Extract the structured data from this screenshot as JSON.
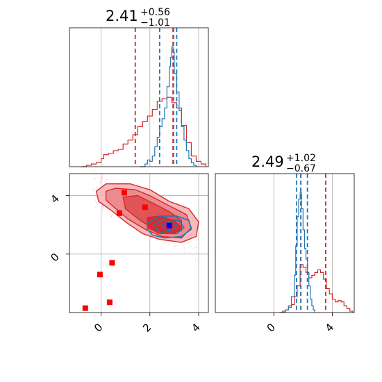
{
  "chart_data": {
    "type": "corner",
    "colors": {
      "red": "#d62728",
      "blue": "#1f77b4",
      "square_red": "#ff0000",
      "square_blue": "#0000ff",
      "scatter": "#ff69b4",
      "grid": "#b0b0b0"
    },
    "panels": [
      {
        "id": "param1-hist",
        "type": "histogram",
        "title": {
          "value": "2.41",
          "sup": "+0.56",
          "sub": "−1.01"
        },
        "xlim": [
          -1.3,
          4.4
        ],
        "grid_x": [
          0,
          2,
          4
        ],
        "series": [
          {
            "name": "",
            "color": "#d62728",
            "bins": [
              [
                -0.8,
                0.0
              ],
              [
                -0.6,
                0.01
              ],
              [
                -0.4,
                0.02
              ],
              [
                -0.2,
                0.03
              ],
              [
                0.0,
                0.06
              ],
              [
                0.1,
                0.09
              ],
              [
                0.3,
                0.1
              ],
              [
                0.5,
                0.12
              ],
              [
                0.7,
                0.13
              ],
              [
                0.9,
                0.17
              ],
              [
                1.1,
                0.2
              ],
              [
                1.3,
                0.24
              ],
              [
                1.5,
                0.3
              ],
              [
                1.7,
                0.34
              ],
              [
                1.9,
                0.38
              ],
              [
                2.1,
                0.43
              ],
              [
                2.3,
                0.49
              ],
              [
                2.5,
                0.51
              ],
              [
                2.7,
                0.52
              ],
              [
                2.9,
                0.48
              ],
              [
                3.1,
                0.44
              ],
              [
                3.3,
                0.31
              ],
              [
                3.5,
                0.18
              ],
              [
                3.7,
                0.08
              ],
              [
                3.9,
                0.04
              ],
              [
                4.1,
                0.02
              ],
              [
                4.3,
                0.0
              ]
            ],
            "quantiles": [
              1.4,
              2.95
            ]
          },
          {
            "name": "",
            "color": "#1f77b4",
            "bins": [
              [
                1.6,
                0.0
              ],
              [
                1.8,
                0.02
              ],
              [
                1.9,
                0.05
              ],
              [
                2.0,
                0.04
              ],
              [
                2.1,
                0.08
              ],
              [
                2.2,
                0.15
              ],
              [
                2.3,
                0.22
              ],
              [
                2.4,
                0.3
              ],
              [
                2.5,
                0.36
              ],
              [
                2.6,
                0.44
              ],
              [
                2.7,
                0.6
              ],
              [
                2.8,
                0.75
              ],
              [
                2.85,
                0.82
              ],
              [
                2.9,
                0.9
              ],
              [
                2.95,
                0.86
              ],
              [
                3.0,
                0.7
              ],
              [
                3.1,
                0.56
              ],
              [
                3.2,
                0.42
              ],
              [
                3.3,
                0.3
              ],
              [
                3.4,
                0.2
              ],
              [
                3.5,
                0.12
              ],
              [
                3.6,
                0.06
              ],
              [
                3.7,
                0.03
              ],
              [
                3.8,
                0.01
              ],
              [
                3.9,
                0.0
              ]
            ],
            "quantiles": [
              2.4,
              2.97,
              3.1
            ]
          }
        ]
      },
      {
        "id": "joint-contour",
        "type": "contour2d",
        "xlim": [
          -1.3,
          4.4
        ],
        "ylim": [
          -4.0,
          5.5
        ],
        "xticks": [
          0,
          2,
          4
        ],
        "yticks": [
          0,
          4
        ],
        "levels_red": [
          [
            [
              -0.2,
              4.3
            ],
            [
              0.2,
              4.8
            ],
            [
              1.2,
              4.8
            ],
            [
              2.0,
              4.4
            ],
            [
              2.8,
              3.6
            ],
            [
              3.6,
              3.1
            ],
            [
              4.0,
              2.2
            ],
            [
              3.9,
              1.2
            ],
            [
              3.3,
              0.8
            ],
            [
              2.4,
              1.0
            ],
            [
              1.7,
              1.4
            ],
            [
              1.0,
              2.2
            ],
            [
              0.4,
              3.0
            ],
            [
              -0.1,
              3.6
            ]
          ],
          [
            [
              0.2,
              4.3
            ],
            [
              0.6,
              4.5
            ],
            [
              1.4,
              4.4
            ],
            [
              2.0,
              4.0
            ],
            [
              2.8,
              3.3
            ],
            [
              3.5,
              2.7
            ],
            [
              3.7,
              1.8
            ],
            [
              3.3,
              1.1
            ],
            [
              2.5,
              1.2
            ],
            [
              1.8,
              1.7
            ],
            [
              1.1,
              2.4
            ],
            [
              0.6,
              3.1
            ],
            [
              0.2,
              3.7
            ]
          ],
          [
            [
              0.9,
              3.9
            ],
            [
              1.5,
              4.0
            ],
            [
              2.1,
              3.5
            ],
            [
              2.8,
              2.9
            ],
            [
              3.3,
              2.3
            ],
            [
              3.3,
              1.6
            ],
            [
              2.8,
              1.4
            ],
            [
              2.2,
              1.7
            ],
            [
              1.6,
              2.3
            ],
            [
              1.0,
              3.1
            ]
          ],
          [
            [
              1.9,
              2.5
            ],
            [
              2.4,
              2.6
            ],
            [
              3.0,
              2.3
            ],
            [
              3.3,
              1.8
            ],
            [
              3.0,
              1.4
            ],
            [
              2.4,
              1.4
            ],
            [
              1.9,
              1.8
            ]
          ]
        ],
        "levels_blue": [
          [
            [
              1.9,
              2.1
            ],
            [
              2.4,
              2.6
            ],
            [
              3.1,
              2.6
            ],
            [
              3.6,
              2.3
            ],
            [
              3.7,
              1.7
            ],
            [
              3.3,
              1.2
            ],
            [
              2.6,
              1.1
            ],
            [
              2.1,
              1.3
            ],
            [
              1.9,
              1.7
            ]
          ],
          [
            [
              2.2,
              2.0
            ],
            [
              2.6,
              2.4
            ],
            [
              3.2,
              2.3
            ],
            [
              3.4,
              1.8
            ],
            [
              3.1,
              1.4
            ],
            [
              2.6,
              1.4
            ],
            [
              2.3,
              1.6
            ]
          ],
          [
            [
              2.5,
              2.0
            ],
            [
              2.8,
              2.2
            ],
            [
              3.1,
              2.0
            ],
            [
              3.0,
              1.7
            ],
            [
              2.7,
              1.6
            ]
          ]
        ],
        "red_squares": [
          [
            0.95,
            4.2
          ],
          [
            1.8,
            3.2
          ],
          [
            0.75,
            2.8
          ],
          [
            -0.65,
            -3.7
          ],
          [
            0.35,
            -3.3
          ],
          [
            -0.05,
            -1.4
          ],
          [
            0.45,
            -0.6
          ]
        ],
        "blue_squares": [
          [
            2.8,
            1.95
          ]
        ],
        "scatter_sample_count": 260
      },
      {
        "id": "param2-hist",
        "type": "histogram",
        "title": {
          "value": "2.49",
          "sup": "+1.02",
          "sub": "−0.67"
        },
        "xlim": [
          -4.0,
          5.5
        ],
        "grid_x": [
          0,
          4
        ],
        "series": [
          {
            "name": "",
            "color": "#d62728",
            "bins": [
              [
                0.4,
                0.0
              ],
              [
                0.6,
                0.01
              ],
              [
                0.8,
                0.02
              ],
              [
                1.0,
                0.04
              ],
              [
                1.2,
                0.06
              ],
              [
                1.4,
                0.12
              ],
              [
                1.6,
                0.2
              ],
              [
                1.8,
                0.36
              ],
              [
                2.0,
                0.34
              ],
              [
                2.2,
                0.3
              ],
              [
                2.4,
                0.26
              ],
              [
                2.6,
                0.28
              ],
              [
                2.8,
                0.3
              ],
              [
                3.0,
                0.32
              ],
              [
                3.2,
                0.3
              ],
              [
                3.4,
                0.25
              ],
              [
                3.6,
                0.18
              ],
              [
                3.8,
                0.14
              ],
              [
                4.0,
                0.1
              ],
              [
                4.2,
                0.08
              ],
              [
                4.4,
                0.09
              ],
              [
                4.6,
                0.08
              ],
              [
                4.8,
                0.05
              ],
              [
                5.0,
                0.03
              ],
              [
                5.2,
                0.01
              ],
              [
                5.4,
                0.0
              ]
            ],
            "quantiles": [
              1.85,
              3.55
            ]
          },
          {
            "name": "",
            "color": "#1f77b4",
            "bins": [
              [
                0.6,
                0.0
              ],
              [
                0.8,
                0.02
              ],
              [
                1.0,
                0.05
              ],
              [
                1.2,
                0.12
              ],
              [
                1.4,
                0.28
              ],
              [
                1.5,
                0.5
              ],
              [
                1.6,
                0.72
              ],
              [
                1.7,
                0.85
              ],
              [
                1.8,
                0.9
              ],
              [
                1.9,
                0.78
              ],
              [
                2.0,
                0.62
              ],
              [
                2.1,
                0.48
              ],
              [
                2.2,
                0.4
              ],
              [
                2.3,
                0.3
              ],
              [
                2.4,
                0.2
              ],
              [
                2.5,
                0.1
              ],
              [
                2.6,
                0.05
              ],
              [
                2.7,
                0.02
              ],
              [
                2.8,
                0.0
              ]
            ],
            "quantiles": [
              1.55,
              1.85,
              2.3
            ]
          }
        ],
        "xticks": [
          0,
          4
        ]
      }
    ]
  }
}
